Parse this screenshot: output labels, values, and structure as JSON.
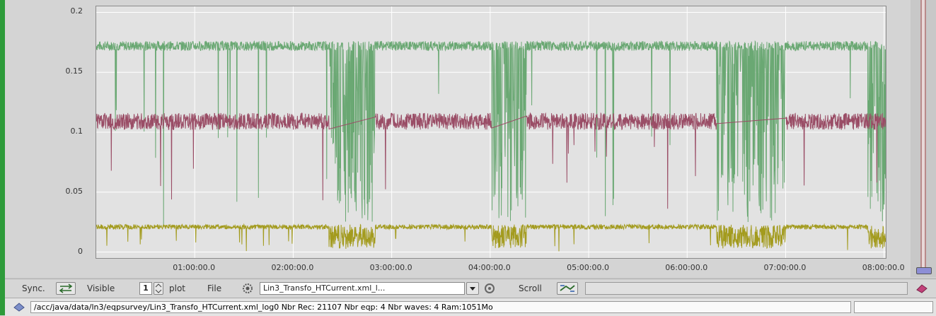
{
  "chart_data": {
    "type": "line",
    "title": "",
    "xlabel": "",
    "ylabel": "",
    "ylim": [
      -0.005,
      0.205
    ],
    "xlim_minutes": [
      0,
      481
    ],
    "y_ticks": [
      "0",
      "0.05",
      "0.1",
      "0.15",
      "0.2"
    ],
    "y_tick_values": [
      0,
      0.05,
      0.1,
      0.15,
      0.2
    ],
    "x_ticks": [
      "01:00:00.0",
      "02:00:00.0",
      "03:00:00.0",
      "04:00:00.0",
      "05:00:00.0",
      "06:00:00.0",
      "07:00:00.0",
      "08:00:00.0"
    ],
    "x_tick_minutes": [
      60,
      120,
      180,
      240,
      300,
      360,
      420,
      480
    ],
    "grid": true,
    "series": [
      {
        "color": "#6aa873",
        "base_level": 0.172,
        "noise": 0.004,
        "dips_minutes": [
          [
            142,
            170
          ],
          [
            241,
            262
          ],
          [
            378,
            420
          ],
          [
            470,
            481
          ]
        ]
      },
      {
        "color": "#9a4d66",
        "base_level": 0.109,
        "noise": 0.007,
        "gaps_minutes": [
          [
            142,
            170
          ],
          [
            241,
            262
          ],
          [
            378,
            420
          ]
        ]
      },
      {
        "color": "#a39b1e",
        "base_level": 0.021,
        "noise": 0.002,
        "dense_minutes": [
          [
            142,
            170
          ],
          [
            241,
            262
          ],
          [
            378,
            420
          ],
          [
            470,
            481
          ]
        ]
      }
    ]
  },
  "toolbar": {
    "sync_label": "Sync.",
    "visible_label": "Visible",
    "visible_value": "1",
    "plot_label": "plot",
    "file_label": "File",
    "file_value": "Lin3_Transfo_HTCurrent.xml_l...",
    "scroll_label": "Scroll"
  },
  "status": {
    "text": "/acc/java/data/ln3/eqpsurvey/Lin3_Transfo_HTCurrent.xml_log0 Nbr Rec: 21107 Nbr eqp: 4 Nbr waves: 4 Ram:1051Mo"
  },
  "colors": {
    "edge": "#2e9b3a",
    "plot_bg": "#e2e2e2",
    "grid": "#ffffff"
  }
}
